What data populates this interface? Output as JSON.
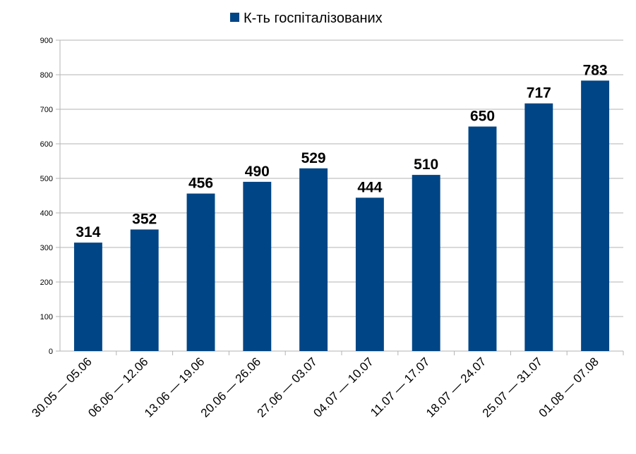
{
  "chart_data": {
    "type": "bar",
    "categories": [
      "30.05 — 05.06",
      "06.06 — 12.06",
      "13.06 — 19.06",
      "20.06 — 26.06",
      "27.06 — 03.07",
      "04.07 — 10.07",
      "11.07 — 17.07",
      "18.07 — 24.07",
      "25.07 — 31.07",
      "01.08 — 07.08"
    ],
    "series": [
      {
        "name": "К-ть госпіталізованих",
        "color": "#004586",
        "values": [
          314,
          352,
          456,
          490,
          529,
          444,
          510,
          650,
          717,
          783
        ]
      }
    ],
    "ylim": [
      0,
      900
    ],
    "yticks": [
      0,
      100,
      200,
      300,
      400,
      500,
      600,
      700,
      800,
      900
    ],
    "grid": true,
    "legend_position": "top"
  }
}
